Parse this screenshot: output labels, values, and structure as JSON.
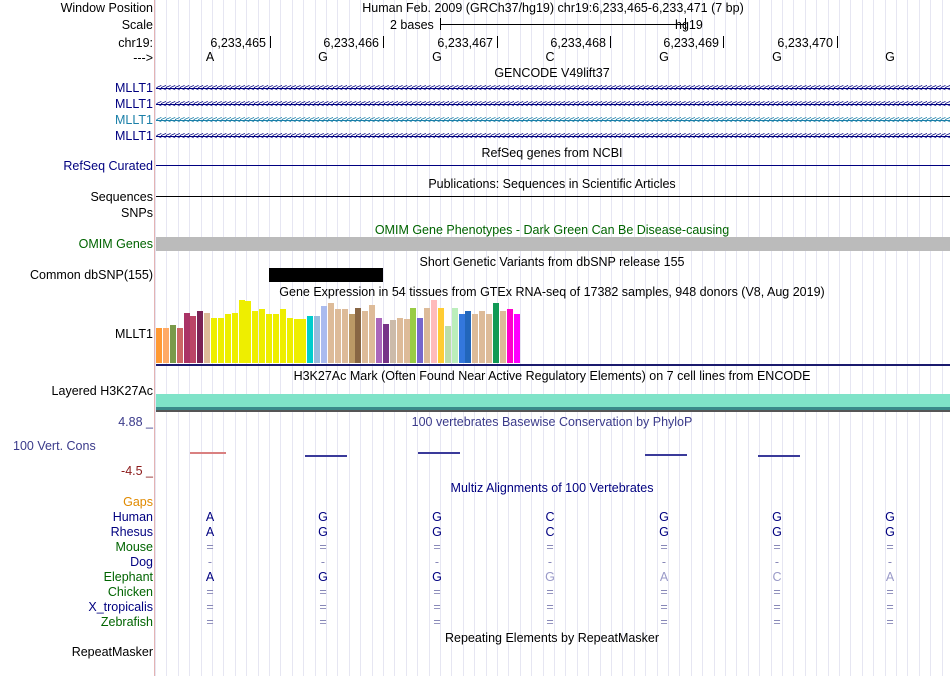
{
  "header": {
    "window_position_label": "Window Position",
    "window_position_value": "Human Feb. 2009 (GRCh37/hg19)   chr19:6,233,465-6,233,471 (7 bp)",
    "scale_label": "Scale",
    "scale_value": "2 bases",
    "scale_assembly": "hg19",
    "chrom_label": "chr19:",
    "arrow_label": "--->",
    "positions": [
      "6,233,465",
      "6,233,466",
      "6,233,467",
      "6,233,468",
      "6,233,469",
      "6,233,470"
    ],
    "bases": [
      "A",
      "G",
      "G",
      "C",
      "G",
      "G",
      "G"
    ]
  },
  "tracks": {
    "gencode": {
      "title": "GENCODE V49lift37",
      "items": [
        "MLLT1",
        "MLLT1",
        "MLLT1",
        "MLLT1"
      ]
    },
    "refseq": {
      "title": "RefSeq genes from NCBI",
      "label": "RefSeq Curated"
    },
    "publications": {
      "title": "Publications: Sequences in Scientific Articles",
      "labels": [
        "Sequences",
        "SNPs"
      ]
    },
    "omim": {
      "title": "OMIM Gene Phenotypes - Dark Green Can Be Disease-causing",
      "label": "OMIM Genes"
    },
    "dbsnp": {
      "title": "Short Genetic Variants from dbSNP release 155",
      "label": "Common dbSNP(155)"
    },
    "gtex": {
      "title": "Gene Expression in 54 tissues from GTEx RNA-seq of 17382 samples, 948 donors (V8, Aug 2019)",
      "label": "MLLT1",
      "bars": [
        {
          "v": 0.55,
          "c": "#ff9933"
        },
        {
          "v": 0.55,
          "c": "#ffaa66"
        },
        {
          "v": 0.6,
          "c": "#7a9a4a"
        },
        {
          "v": 0.55,
          "c": "#cc6666"
        },
        {
          "v": 0.8,
          "c": "#aa3366"
        },
        {
          "v": 0.75,
          "c": "#bb4466"
        },
        {
          "v": 0.82,
          "c": "#7a2255"
        },
        {
          "v": 0.8,
          "c": "#ddbb99"
        },
        {
          "v": 0.72,
          "c": "#eeee00"
        },
        {
          "v": 0.72,
          "c": "#eeee00"
        },
        {
          "v": 0.78,
          "c": "#eeee00"
        },
        {
          "v": 0.8,
          "c": "#eeee00"
        },
        {
          "v": 1.0,
          "c": "#eeee00"
        },
        {
          "v": 0.98,
          "c": "#eeee00"
        },
        {
          "v": 0.82,
          "c": "#eeee00"
        },
        {
          "v": 0.85,
          "c": "#eeee00"
        },
        {
          "v": 0.78,
          "c": "#eeee00"
        },
        {
          "v": 0.78,
          "c": "#eeee00"
        },
        {
          "v": 0.85,
          "c": "#eeee00"
        },
        {
          "v": 0.72,
          "c": "#eeee00"
        },
        {
          "v": 0.7,
          "c": "#eeee00"
        },
        {
          "v": 0.7,
          "c": "#eeee00"
        },
        {
          "v": 0.75,
          "c": "#00cccc"
        },
        {
          "v": 0.75,
          "c": "#99bbdd"
        },
        {
          "v": 0.9,
          "c": "#aabbee"
        },
        {
          "v": 0.95,
          "c": "#ddbb99"
        },
        {
          "v": 0.85,
          "c": "#ddbb99"
        },
        {
          "v": 0.85,
          "c": "#ddbb99"
        },
        {
          "v": 0.78,
          "c": "#bb9966"
        },
        {
          "v": 0.88,
          "c": "#886644"
        },
        {
          "v": 0.82,
          "c": "#ddbb99"
        },
        {
          "v": 0.92,
          "c": "#ddbb99"
        },
        {
          "v": 0.72,
          "c": "#aa66bb"
        },
        {
          "v": 0.62,
          "c": "#773388"
        },
        {
          "v": 0.68,
          "c": "#ccbbaa"
        },
        {
          "v": 0.72,
          "c": "#ddbb99"
        },
        {
          "v": 0.7,
          "c": "#ddbb99"
        },
        {
          "v": 0.88,
          "c": "#99cc44"
        },
        {
          "v": 0.72,
          "c": "#7766cc"
        },
        {
          "v": 0.88,
          "c": "#ddbb99"
        },
        {
          "v": 1.0,
          "c": "#ffbbbb"
        },
        {
          "v": 0.88,
          "c": "#ffcc33"
        },
        {
          "v": 0.58,
          "c": "#bbddaa"
        },
        {
          "v": 0.88,
          "c": "#bbeebb"
        },
        {
          "v": 0.78,
          "c": "#3377dd"
        },
        {
          "v": 0.82,
          "c": "#2266bb"
        },
        {
          "v": 0.78,
          "c": "#ddbb99"
        },
        {
          "v": 0.82,
          "c": "#ddbb99"
        },
        {
          "v": 0.78,
          "c": "#ddbb99"
        },
        {
          "v": 0.95,
          "c": "#119955"
        },
        {
          "v": 0.82,
          "c": "#ddbb99"
        },
        {
          "v": 0.85,
          "c": "#ff00cc"
        },
        {
          "v": 0.78,
          "c": "#ff00ff"
        }
      ]
    },
    "h3k27ac": {
      "title": "H3K27Ac Mark (Often Found Near Active Regulatory Elements) on 7 cell lines from ENCODE",
      "label": "Layered H3K27Ac"
    },
    "phylop": {
      "title": "100 vertebrates Basewise Conservation by PhyloP",
      "label": "100 Vert. Cons",
      "max": "4.88 _",
      "min": "-4.5 _"
    },
    "multiz": {
      "title": "Multiz Alignments of 100 Vertebrates",
      "gaps_label": "Gaps",
      "species": [
        {
          "name": "Human",
          "color": "#000080",
          "bases": [
            "A",
            "G",
            "G",
            "C",
            "G",
            "G",
            "G"
          ],
          "bcolor": "#000080"
        },
        {
          "name": "Rhesus",
          "color": "#000080",
          "bases": [
            "A",
            "G",
            "G",
            "C",
            "G",
            "G",
            "G"
          ],
          "bcolor": "#000080"
        },
        {
          "name": "Mouse",
          "color": "#006400",
          "bases": [
            "=",
            "=",
            "=",
            "=",
            "=",
            "=",
            "="
          ],
          "bcolor": "#6e6ea0"
        },
        {
          "name": "Dog",
          "color": "#000080",
          "bases": [
            "-",
            "-",
            "-",
            "-",
            "-",
            "-",
            "-"
          ],
          "bcolor": "#6e6ea0"
        },
        {
          "name": "Elephant",
          "color": "#006400",
          "bases": [
            "A",
            "G",
            "G",
            "G",
            "A",
            "C",
            "A"
          ],
          "bcolor": "#000080"
        },
        {
          "name": "Chicken",
          "color": "#006400",
          "bases": [
            "=",
            "=",
            "=",
            "=",
            "=",
            "=",
            "="
          ],
          "bcolor": "#6e6ea0"
        },
        {
          "name": "X_tropicalis",
          "color": "#000080",
          "bases": [
            "=",
            "=",
            "=",
            "=",
            "=",
            "=",
            "="
          ],
          "bcolor": "#6e6ea0"
        },
        {
          "name": "Zebrafish",
          "color": "#006400",
          "bases": [
            "=",
            "=",
            "=",
            "=",
            "=",
            "=",
            "="
          ],
          "bcolor": "#6e6ea0"
        }
      ]
    },
    "repeatmasker": {
      "title": "Repeating Elements by RepeatMasker",
      "label": "RepeatMasker"
    }
  },
  "colors": {
    "label_blue": "#000080",
    "gencode_alt": "#1a7fa8",
    "omim_green": "#006400",
    "gaps_orange": "#e08a00",
    "phylop_min": "#8b1a1a",
    "h3k27ac": "#7fe3c8",
    "omim_bar": "#bbbbbb"
  }
}
